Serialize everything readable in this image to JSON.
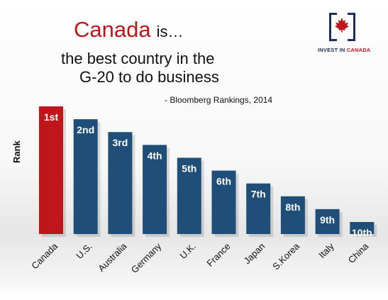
{
  "header": {
    "title_canada": "Canada",
    "title_is": "is…",
    "title_line2": "the best country in the",
    "title_line3": "G-20 to do business",
    "source": "- Bloomberg Rankings, 2014"
  },
  "logo": {
    "text_part1": "INVEST IN ",
    "text_part2": "CANADA"
  },
  "colors": {
    "highlight": "#c0161b",
    "bar": "#1f4e79",
    "label": "#ffffff"
  },
  "chart_data": {
    "type": "bar",
    "ylabel": "Rank",
    "categories": [
      "Canada",
      "U.S.",
      "Australia",
      "Germany",
      "U.K.",
      "France",
      "Japan",
      "S.Korea",
      "Italy",
      "China"
    ],
    "values": [
      1,
      2,
      3,
      4,
      5,
      6,
      7,
      8,
      9,
      10
    ],
    "labels": [
      "1st",
      "2nd",
      "3rd",
      "4th",
      "5th",
      "6th",
      "7th",
      "8th",
      "9th",
      "10th"
    ],
    "highlight_index": 0,
    "axis": "inverted",
    "grid": false,
    "legend": "none"
  }
}
